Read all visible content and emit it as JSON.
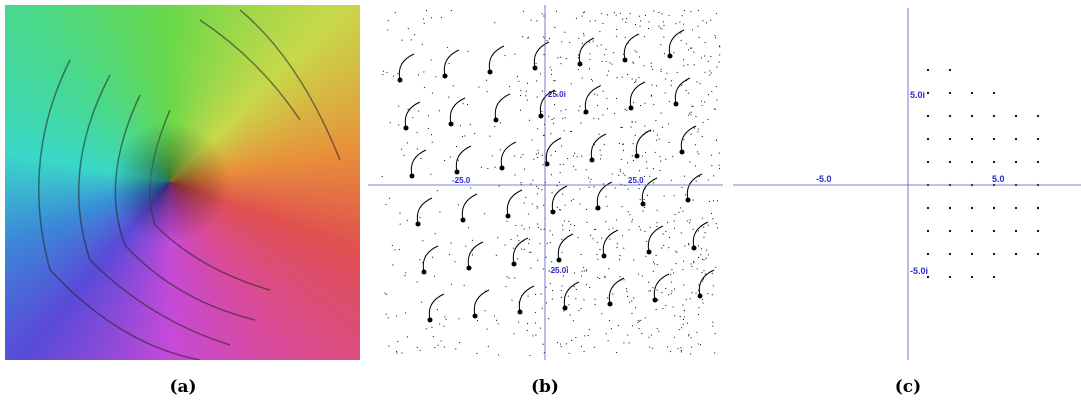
{
  "panels": [
    {
      "caption": "(a)"
    },
    {
      "caption": "(b)",
      "axis_labels": [
        "25.0i",
        "-25.0",
        "25.0",
        "-25.0i"
      ]
    },
    {
      "caption": "(c)",
      "axis_labels": [
        "5.0i",
        "-5.0",
        "5.0",
        "-5.0i"
      ]
    }
  ]
}
